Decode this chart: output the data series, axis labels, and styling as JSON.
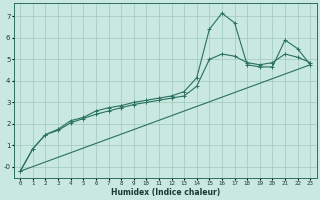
{
  "xlabel": "Humidex (Indice chaleur)",
  "bg_color": "#c8e8e0",
  "grid_color": "#a0c8bc",
  "line_color": "#2a7060",
  "xlim": [
    -0.5,
    23.5
  ],
  "ylim": [
    -0.5,
    7.6
  ],
  "xticks": [
    0,
    1,
    2,
    3,
    4,
    5,
    6,
    7,
    8,
    9,
    10,
    11,
    12,
    13,
    14,
    15,
    16,
    17,
    18,
    19,
    20,
    21,
    22,
    23
  ],
  "yticks": [
    0,
    1,
    2,
    3,
    4,
    5,
    6,
    7
  ],
  "ytick_labels": [
    "-0",
    "1",
    "2",
    "3",
    "4",
    "5",
    "6",
    "7"
  ],
  "lines": [
    {
      "x": [
        0,
        1,
        2,
        3,
        4,
        5,
        6,
        7,
        8,
        9,
        10,
        11,
        12,
        13,
        14,
        15,
        16,
        17,
        18,
        19,
        20,
        21,
        22,
        23
      ],
      "y": [
        -0.2,
        0.85,
        1.5,
        1.75,
        2.15,
        2.3,
        2.6,
        2.75,
        2.85,
        3.0,
        3.1,
        3.2,
        3.3,
        3.5,
        4.15,
        6.4,
        7.15,
        6.7,
        4.75,
        4.65,
        4.65,
        5.9,
        5.5,
        4.75
      ],
      "marker": true
    },
    {
      "x": [
        0,
        1,
        2,
        3,
        4,
        5,
        6,
        7,
        8,
        9,
        10,
        11,
        12,
        13,
        14,
        15,
        16,
        17,
        18,
        19,
        20,
        21,
        22,
        23
      ],
      "y": [
        -0.2,
        0.85,
        1.5,
        1.7,
        2.05,
        2.25,
        2.45,
        2.6,
        2.75,
        2.9,
        3.0,
        3.1,
        3.2,
        3.3,
        3.75,
        5.0,
        5.25,
        5.15,
        4.85,
        4.75,
        4.85,
        5.25,
        5.1,
        4.85
      ],
      "marker": true
    },
    {
      "x": [
        0,
        23
      ],
      "y": [
        -0.2,
        4.75
      ],
      "marker": false
    }
  ]
}
